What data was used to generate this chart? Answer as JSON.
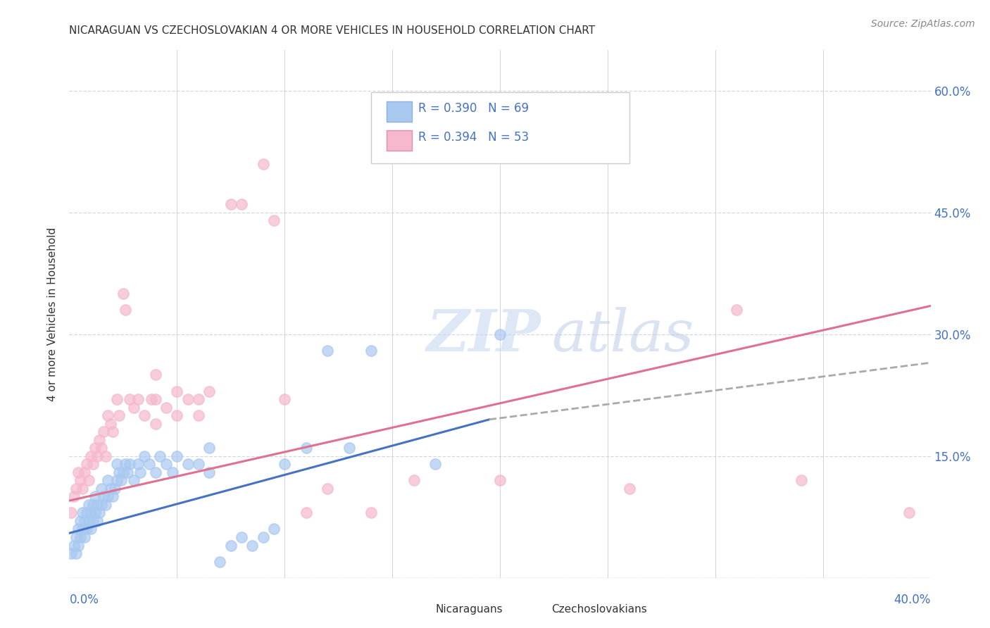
{
  "title": "NICARAGUAN VS CZECHOSLOVAKIAN 4 OR MORE VEHICLES IN HOUSEHOLD CORRELATION CHART",
  "source": "Source: ZipAtlas.com",
  "ylabel": "4 or more Vehicles in Household",
  "xmin": 0.0,
  "xmax": 0.4,
  "ymin": 0.0,
  "ymax": 0.65,
  "legend_blue_r": "R = 0.390",
  "legend_blue_n": "N = 69",
  "legend_pink_r": "R = 0.394",
  "legend_pink_n": "N = 53",
  "blue_scatter_color": "#a8c8f0",
  "pink_scatter_color": "#f5b8cc",
  "blue_line_color": "#4472c4",
  "pink_line_color": "#e07090",
  "gray_dash_color": "#aaaaaa",
  "text_color": "#4472c4",
  "background_color": "#ffffff",
  "grid_color": "#d0d8e8",
  "yticks": [
    0.0,
    0.15,
    0.3,
    0.45,
    0.6
  ],
  "ytick_labels": [
    "",
    "15.0%",
    "30.0%",
    "45.0%",
    "60.0%"
  ],
  "xtick_minor": [
    0.05,
    0.1,
    0.15,
    0.2,
    0.25,
    0.3,
    0.35
  ],
  "nicaraguan_points": [
    [
      0.001,
      0.03
    ],
    [
      0.002,
      0.04
    ],
    [
      0.003,
      0.03
    ],
    [
      0.003,
      0.05
    ],
    [
      0.004,
      0.04
    ],
    [
      0.004,
      0.06
    ],
    [
      0.005,
      0.05
    ],
    [
      0.005,
      0.07
    ],
    [
      0.006,
      0.06
    ],
    [
      0.006,
      0.08
    ],
    [
      0.007,
      0.05
    ],
    [
      0.007,
      0.07
    ],
    [
      0.008,
      0.06
    ],
    [
      0.008,
      0.08
    ],
    [
      0.009,
      0.07
    ],
    [
      0.009,
      0.09
    ],
    [
      0.01,
      0.06
    ],
    [
      0.01,
      0.08
    ],
    [
      0.011,
      0.07
    ],
    [
      0.011,
      0.09
    ],
    [
      0.012,
      0.08
    ],
    [
      0.012,
      0.1
    ],
    [
      0.013,
      0.07
    ],
    [
      0.013,
      0.09
    ],
    [
      0.014,
      0.08
    ],
    [
      0.015,
      0.09
    ],
    [
      0.015,
      0.11
    ],
    [
      0.016,
      0.1
    ],
    [
      0.017,
      0.09
    ],
    [
      0.018,
      0.1
    ],
    [
      0.018,
      0.12
    ],
    [
      0.019,
      0.11
    ],
    [
      0.02,
      0.1
    ],
    [
      0.021,
      0.11
    ],
    [
      0.022,
      0.12
    ],
    [
      0.022,
      0.14
    ],
    [
      0.023,
      0.13
    ],
    [
      0.024,
      0.12
    ],
    [
      0.025,
      0.13
    ],
    [
      0.026,
      0.14
    ],
    [
      0.027,
      0.13
    ],
    [
      0.028,
      0.14
    ],
    [
      0.03,
      0.12
    ],
    [
      0.032,
      0.14
    ],
    [
      0.033,
      0.13
    ],
    [
      0.035,
      0.15
    ],
    [
      0.037,
      0.14
    ],
    [
      0.04,
      0.13
    ],
    [
      0.042,
      0.15
    ],
    [
      0.045,
      0.14
    ],
    [
      0.048,
      0.13
    ],
    [
      0.05,
      0.15
    ],
    [
      0.055,
      0.14
    ],
    [
      0.06,
      0.14
    ],
    [
      0.065,
      0.13
    ],
    [
      0.065,
      0.16
    ],
    [
      0.07,
      0.02
    ],
    [
      0.075,
      0.04
    ],
    [
      0.08,
      0.05
    ],
    [
      0.085,
      0.04
    ],
    [
      0.09,
      0.05
    ],
    [
      0.095,
      0.06
    ],
    [
      0.1,
      0.14
    ],
    [
      0.11,
      0.16
    ],
    [
      0.12,
      0.28
    ],
    [
      0.13,
      0.16
    ],
    [
      0.14,
      0.28
    ],
    [
      0.17,
      0.14
    ],
    [
      0.2,
      0.3
    ]
  ],
  "czechoslovakian_points": [
    [
      0.001,
      0.08
    ],
    [
      0.002,
      0.1
    ],
    [
      0.003,
      0.11
    ],
    [
      0.004,
      0.13
    ],
    [
      0.005,
      0.12
    ],
    [
      0.006,
      0.11
    ],
    [
      0.007,
      0.13
    ],
    [
      0.008,
      0.14
    ],
    [
      0.009,
      0.12
    ],
    [
      0.01,
      0.15
    ],
    [
      0.011,
      0.14
    ],
    [
      0.012,
      0.16
    ],
    [
      0.013,
      0.15
    ],
    [
      0.014,
      0.17
    ],
    [
      0.015,
      0.16
    ],
    [
      0.016,
      0.18
    ],
    [
      0.017,
      0.15
    ],
    [
      0.018,
      0.2
    ],
    [
      0.019,
      0.19
    ],
    [
      0.02,
      0.18
    ],
    [
      0.022,
      0.22
    ],
    [
      0.023,
      0.2
    ],
    [
      0.025,
      0.35
    ],
    [
      0.026,
      0.33
    ],
    [
      0.028,
      0.22
    ],
    [
      0.03,
      0.21
    ],
    [
      0.032,
      0.22
    ],
    [
      0.035,
      0.2
    ],
    [
      0.038,
      0.22
    ],
    [
      0.04,
      0.22
    ],
    [
      0.04,
      0.25
    ],
    [
      0.045,
      0.21
    ],
    [
      0.05,
      0.23
    ],
    [
      0.055,
      0.22
    ],
    [
      0.06,
      0.22
    ],
    [
      0.065,
      0.23
    ],
    [
      0.075,
      0.46
    ],
    [
      0.08,
      0.46
    ],
    [
      0.09,
      0.51
    ],
    [
      0.095,
      0.44
    ],
    [
      0.1,
      0.22
    ],
    [
      0.11,
      0.08
    ],
    [
      0.12,
      0.11
    ],
    [
      0.14,
      0.08
    ],
    [
      0.16,
      0.12
    ],
    [
      0.2,
      0.12
    ],
    [
      0.26,
      0.11
    ],
    [
      0.34,
      0.12
    ],
    [
      0.39,
      0.08
    ],
    [
      0.04,
      0.19
    ],
    [
      0.05,
      0.2
    ],
    [
      0.06,
      0.2
    ],
    [
      0.31,
      0.33
    ]
  ],
  "blue_trendline_solid": [
    [
      0.0,
      0.055
    ],
    [
      0.195,
      0.195
    ]
  ],
  "blue_trendline_dashed": [
    [
      0.195,
      0.195
    ],
    [
      0.4,
      0.265
    ]
  ],
  "pink_trendline": [
    [
      0.0,
      0.095
    ],
    [
      0.4,
      0.335
    ]
  ]
}
